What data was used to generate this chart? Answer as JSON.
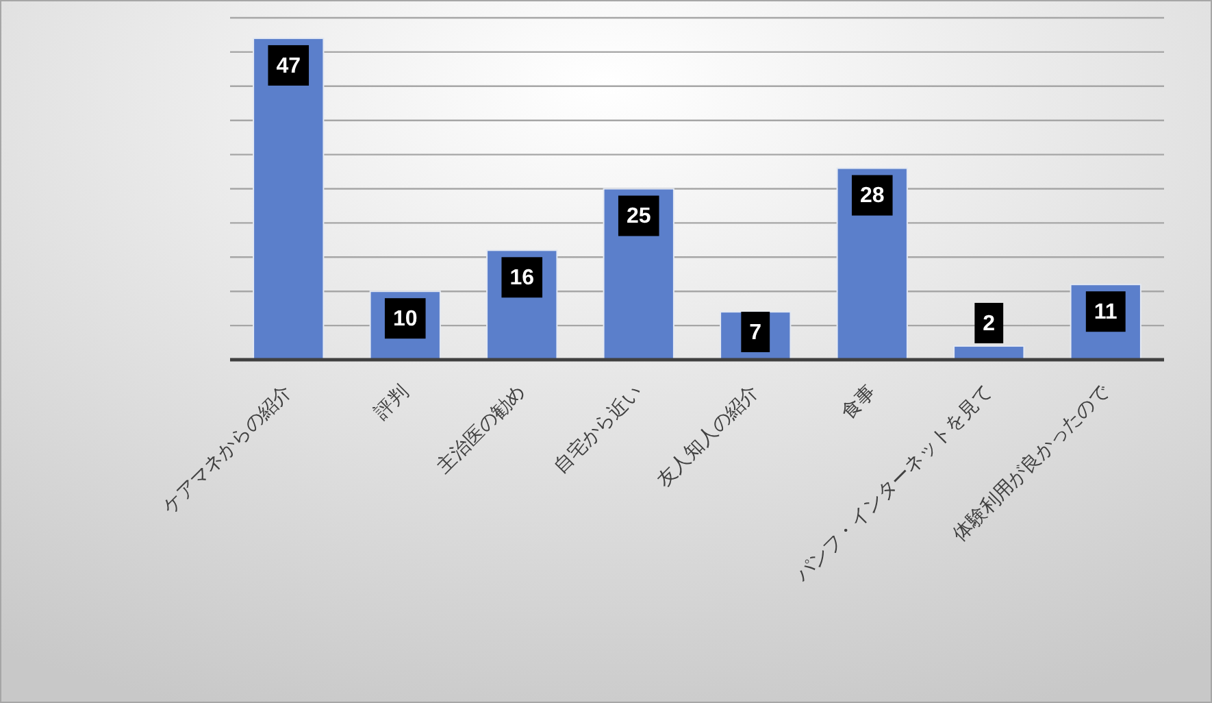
{
  "chart_data": {
    "type": "bar",
    "categories": [
      "ケアマネからの紹介",
      "評判",
      "主治医の勧め",
      "自宅から近い",
      "友人知人の紹介",
      "食事",
      "パンフ・インターネットを見て",
      "体験利用が良かったので"
    ],
    "values": [
      47,
      10,
      16,
      25,
      7,
      28,
      2,
      11
    ],
    "color": "#5b7fcb",
    "ylim": [
      0,
      50
    ],
    "yticks": [
      {
        "value": 0,
        "label": null
      },
      {
        "value": 5,
        "label": null
      },
      {
        "value": 10,
        "label": null
      },
      {
        "value": 15,
        "label": null
      },
      {
        "value": 20,
        "label": null
      },
      {
        "value": 25,
        "label": null
      },
      {
        "value": 30,
        "label": null
      },
      {
        "value": 35,
        "label": null
      },
      {
        "value": 40,
        "label": null
      },
      {
        "value": 45,
        "label": null
      },
      {
        "value": 50,
        "label": null
      }
    ],
    "grid": "y",
    "tick_labels": "x",
    "data_labels": true
  }
}
